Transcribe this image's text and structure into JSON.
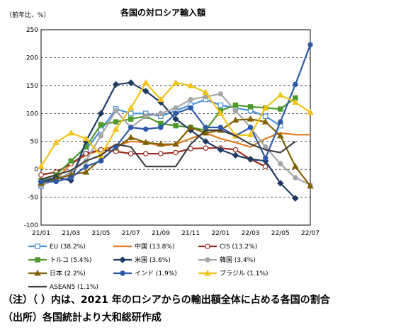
{
  "chart_data": {
    "type": "line",
    "title": "各国の対ロシア輸入額",
    "unit_label": "（前年比、%）",
    "ylim": [
      -100,
      250
    ],
    "yticks": [
      -100,
      -50,
      0,
      50,
      100,
      150,
      200,
      250
    ],
    "x": [
      "21/01",
      "21/02",
      "21/03",
      "21/04",
      "21/05",
      "21/06",
      "21/07",
      "21/08",
      "21/09",
      "21/10",
      "21/11",
      "21/12",
      "22/01",
      "22/02",
      "22/03",
      "22/04",
      "22/05",
      "22/06",
      "22/07"
    ],
    "xtick_labels": [
      "21/01",
      "21/03",
      "21/05",
      "21/07",
      "21/09",
      "21/11",
      "22/01",
      "22/03",
      "22/05",
      "22/07"
    ],
    "grid": true,
    "series": [
      {
        "name": "EU (38.2%)",
        "color": "#4a90d9",
        "marker": "square-open",
        "dash": "",
        "values": [
          -30,
          -15,
          -10,
          35,
          70,
          108,
          100,
          100,
          95,
          105,
          115,
          125,
          115,
          110,
          105,
          95,
          78,
          null,
          null
        ]
      },
      {
        "name": "中国 (13.8%)",
        "color": "#e07b20",
        "marker": "none",
        "dash": "",
        "values": [
          -22,
          -18,
          10,
          25,
          35,
          42,
          50,
          48,
          42,
          45,
          55,
          65,
          55,
          48,
          40,
          55,
          65,
          62,
          62
        ]
      },
      {
        "name": "CIS (13.2%)",
        "color": "#9b2d20",
        "marker": "circle-open",
        "dash": "",
        "values": [
          -10,
          -5,
          10,
          28,
          35,
          32,
          28,
          28,
          28,
          30,
          37,
          38,
          38,
          35,
          18,
          5,
          null,
          null,
          null
        ]
      },
      {
        "name": "トルコ (5.4%)",
        "color": "#4e9a2a",
        "marker": "square",
        "dash": "",
        "values": [
          -20,
          -10,
          15,
          40,
          80,
          85,
          90,
          95,
          82,
          78,
          75,
          70,
          105,
          115,
          112,
          110,
          108,
          128,
          null
        ]
      },
      {
        "name": "米国 (3.6%)",
        "color": "#1f3b63",
        "marker": "diamond",
        "dash": "",
        "values": [
          -22,
          -15,
          -20,
          50,
          100,
          152,
          155,
          140,
          120,
          90,
          70,
          50,
          35,
          25,
          18,
          15,
          -25,
          -52,
          null
        ]
      },
      {
        "name": "韓国 (3.4%)",
        "color": "#a6a6a6",
        "marker": "circle",
        "dash": "",
        "values": [
          -28,
          -20,
          -5,
          15,
          60,
          105,
          75,
          95,
          100,
          110,
          125,
          130,
          135,
          105,
          75,
          40,
          10,
          -15,
          -28
        ]
      },
      {
        "name": "日本 (2.2%)",
        "color": "#806000",
        "marker": "triangle",
        "dash": "",
        "values": [
          -25,
          -18,
          -10,
          -5,
          18,
          38,
          57,
          48,
          45,
          45,
          75,
          65,
          70,
          88,
          90,
          85,
          60,
          5,
          -30
        ]
      },
      {
        "name": "インド (1.9%)",
        "color": "#2e5aa8",
        "marker": "circle",
        "dash": "",
        "values": [
          -22,
          -22,
          -15,
          5,
          15,
          40,
          75,
          72,
          75,
          100,
          110,
          75,
          75,
          60,
          75,
          20,
          85,
          152,
          223
        ]
      },
      {
        "name": "ブラジル (1.1%)",
        "color": "#f0c419",
        "marker": "triangle",
        "dash": "",
        "values": [
          5,
          48,
          65,
          55,
          25,
          72,
          110,
          155,
          125,
          155,
          150,
          138,
          100,
          60,
          62,
          110,
          133,
          120,
          102
        ]
      },
      {
        "name": "ASEAN5 (1.1%)",
        "color": "#404040",
        "marker": "none",
        "dash": "",
        "values": [
          -18,
          -10,
          -2,
          15,
          25,
          45,
          40,
          5,
          5,
          5,
          45,
          70,
          70,
          60,
          45,
          35,
          30,
          50,
          null
        ]
      }
    ]
  },
  "notes": {
    "note1": "（注）（ ）内は、2021 年のロシアからの輸出額全体に占める各国の割合",
    "note2": "（出所）各国統計より大和総研作成"
  }
}
